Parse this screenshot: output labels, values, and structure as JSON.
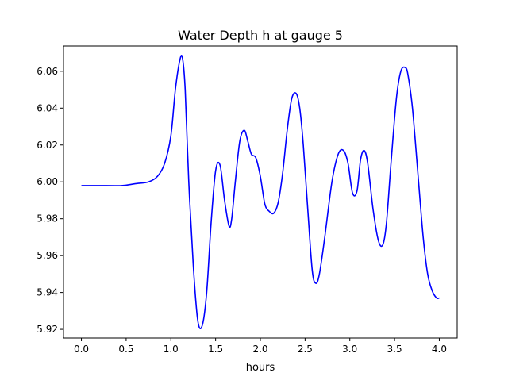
{
  "chart_data": {
    "type": "line",
    "title": "Water Depth h at gauge 5",
    "xlabel": "hours",
    "ylabel": "",
    "xlim": [
      -0.2,
      4.2
    ],
    "ylim": [
      5.9153,
      6.0737
    ],
    "xticks": [
      0.0,
      0.5,
      1.0,
      1.5,
      2.0,
      2.5,
      3.0,
      3.5,
      4.0
    ],
    "xtick_labels": [
      "0.0",
      "0.5",
      "1.0",
      "1.5",
      "2.0",
      "2.5",
      "3.0",
      "3.5",
      "4.0"
    ],
    "yticks": [
      5.92,
      5.94,
      5.96,
      5.98,
      6.0,
      6.02,
      6.04,
      6.06
    ],
    "ytick_labels": [
      "5.92",
      "5.94",
      "5.96",
      "5.98",
      "6.00",
      "6.02",
      "6.04",
      "6.06"
    ],
    "grid": false,
    "series": [
      {
        "color": "#0000ff",
        "x": [
          0.0,
          0.2,
          0.45,
          0.6,
          0.75,
          0.85,
          0.93,
          1.0,
          1.05,
          1.1,
          1.13,
          1.16,
          1.2,
          1.25,
          1.3,
          1.35,
          1.4,
          1.45,
          1.5,
          1.55,
          1.6,
          1.65,
          1.68,
          1.72,
          1.77,
          1.82,
          1.86,
          1.9,
          1.95,
          2.0,
          2.05,
          2.1,
          2.15,
          2.2,
          2.25,
          2.3,
          2.35,
          2.4,
          2.44,
          2.48,
          2.53,
          2.58,
          2.62,
          2.66,
          2.72,
          2.8,
          2.87,
          2.93,
          2.98,
          3.03,
          3.08,
          3.12,
          3.16,
          3.2,
          3.26,
          3.32,
          3.37,
          3.41,
          3.46,
          3.52,
          3.57,
          3.62,
          3.65,
          3.7,
          3.76,
          3.82,
          3.87,
          3.92,
          3.97,
          4.0
        ],
        "y": [
          5.998,
          5.998,
          5.998,
          5.999,
          6.0,
          6.003,
          6.01,
          6.025,
          6.05,
          6.066,
          6.067,
          6.05,
          6.0,
          5.955,
          5.925,
          5.922,
          5.94,
          5.978,
          6.006,
          6.009,
          5.99,
          5.976,
          5.98,
          6.0,
          6.022,
          6.028,
          6.022,
          6.015,
          6.013,
          6.003,
          5.988,
          5.984,
          5.983,
          5.989,
          6.005,
          6.028,
          6.045,
          6.048,
          6.04,
          6.02,
          5.985,
          5.952,
          5.945,
          5.95,
          5.97,
          6.0,
          6.015,
          6.017,
          6.01,
          5.994,
          5.995,
          6.012,
          6.017,
          6.01,
          5.985,
          5.968,
          5.966,
          5.978,
          6.01,
          6.045,
          6.06,
          6.062,
          6.058,
          6.04,
          6.005,
          5.97,
          5.95,
          5.941,
          5.937,
          5.937
        ]
      }
    ]
  }
}
